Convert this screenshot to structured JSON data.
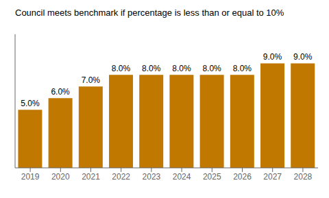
{
  "chart_data": {
    "type": "bar",
    "title": "Council meets benchmark if percentage is less than or equal to 10%",
    "categories": [
      "2019",
      "2020",
      "2021",
      "2022",
      "2023",
      "2024",
      "2025",
      "2026",
      "2027",
      "2028"
    ],
    "values": [
      5.0,
      6.0,
      7.0,
      8.0,
      8.0,
      8.0,
      8.0,
      8.0,
      9.0,
      9.0
    ],
    "value_labels": [
      "5.0%",
      "6.0%",
      "7.0%",
      "8.0%",
      "8.0%",
      "8.0%",
      "8.0%",
      "8.0%",
      "9.0%",
      "9.0%"
    ],
    "color": "#C07800",
    "ylim": [
      0,
      11.5
    ],
    "data_labels": true,
    "tick_labels": "x",
    "grid": false
  }
}
